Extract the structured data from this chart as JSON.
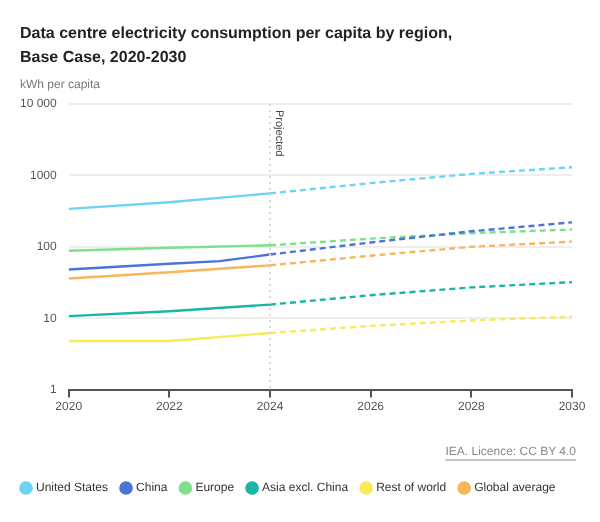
{
  "chart_data": {
    "type": "line",
    "title": "Data centre electricity consumption per capita by region, Base Case, 2020-2030",
    "ylabel": "kWh per capita",
    "log": "y",
    "xlim": [
      2020,
      2030
    ],
    "xticks": [
      2020,
      2022,
      2024,
      2026,
      2028,
      2030
    ],
    "ylim": [
      1,
      10000
    ],
    "yticks": [
      1,
      10,
      100,
      1000,
      {
        "value": 10000,
        "label": "10 000"
      }
    ],
    "grid": "y",
    "legend": "bottom",
    "marker": "none",
    "ref_lines": [
      {
        "axis": "x",
        "value": 2024,
        "label": "Projected",
        "line_style": "dotted",
        "color": "#d9d9d9"
      }
    ],
    "annotations": [
      "IEA. Licence: CC BY 4.0"
    ],
    "series": [
      {
        "name": "United States",
        "color": "#6dd3f7",
        "x": [
          2020,
          2022,
          2024
        ],
        "values": [
          340,
          420,
          560
        ]
      },
      {
        "name": "China",
        "color": "#4a74d8",
        "x": [
          2020,
          2022,
          2023,
          2024
        ],
        "values": [
          48,
          58,
          63,
          78
        ]
      },
      {
        "name": "Europe",
        "color": "#7ee08a",
        "x": [
          2020,
          2022,
          2024
        ],
        "values": [
          88,
          97,
          105
        ]
      },
      {
        "name": "Asia excl. China",
        "color": "#1bb5a5",
        "x": [
          2020,
          2022,
          2024
        ],
        "values": [
          10.7,
          12.5,
          15.5
        ]
      },
      {
        "name": "Rest of world",
        "color": "#f4ec5a",
        "x": [
          2020,
          2022,
          2024
        ],
        "values": [
          4.8,
          4.8,
          6.2
        ]
      },
      {
        "name": "Global average",
        "color": "#f8b65c",
        "x": [
          2020,
          2022,
          2024
        ],
        "values": [
          36,
          44,
          55
        ]
      },
      {
        "color": "#6dd3f7",
        "line_style": "dashed",
        "x": [
          2024,
          2026,
          2028,
          2030
        ],
        "values": [
          560,
          780,
          1050,
          1300
        ]
      },
      {
        "color": "#4a74d8",
        "line_style": "dashed",
        "x": [
          2024,
          2026,
          2028,
          2030
        ],
        "values": [
          78,
          115,
          165,
          220
        ]
      },
      {
        "color": "#7ee08a",
        "line_style": "dashed",
        "x": [
          2024,
          2026,
          2028,
          2030
        ],
        "values": [
          105,
          130,
          155,
          175
        ]
      },
      {
        "color": "#1bb5a5",
        "line_style": "dashed",
        "x": [
          2024,
          2026,
          2028,
          2030
        ],
        "values": [
          15.5,
          21,
          27,
          32
        ]
      },
      {
        "color": "#f4ec5a",
        "line_style": "dashed",
        "x": [
          2024,
          2026,
          2028,
          2030
        ],
        "values": [
          6.2,
          7.8,
          9.3,
          10.5
        ]
      },
      {
        "color": "#f8b65c",
        "line_style": "dashed",
        "x": [
          2024,
          2026,
          2028,
          2030
        ],
        "values": [
          55,
          75,
          100,
          118
        ]
      }
    ]
  }
}
